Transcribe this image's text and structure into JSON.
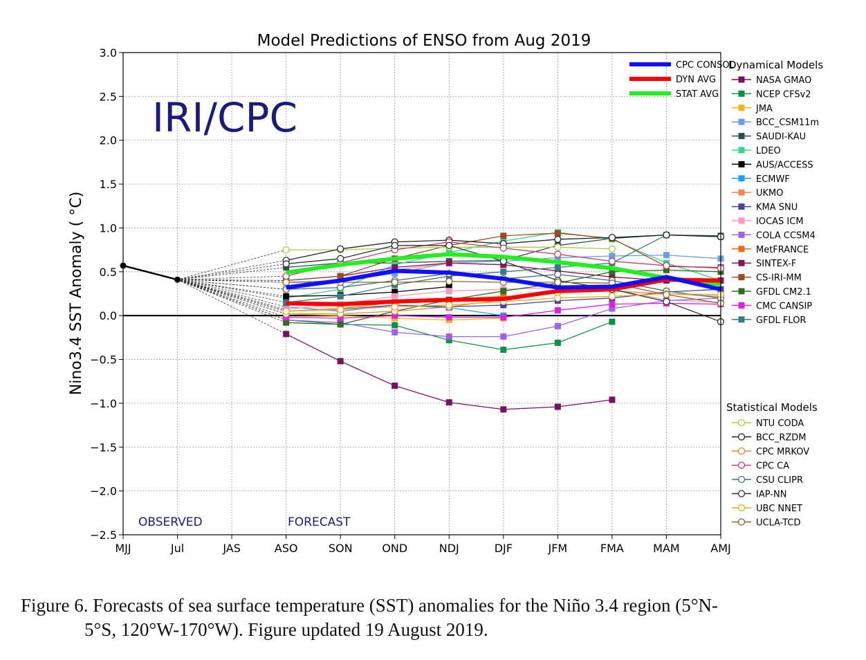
{
  "chart_data": {
    "type": "line",
    "title": "Model Predictions of ENSO from Aug 2019",
    "ylabel": "Nino3.4 SST Anomaly ( °C)",
    "xlabel": "",
    "watermark": "IRI/CPC",
    "observed_label": "OBSERVED",
    "forecast_label": "FORECAST",
    "categories": [
      "MJJ",
      "Jul",
      "JAS",
      "ASO",
      "SON",
      "OND",
      "NDJ",
      "DJF",
      "JFM",
      "FMA",
      "MAM",
      "AMJ"
    ],
    "ylim": [
      -2.5,
      3.0
    ],
    "yticks": [
      "3.0",
      "2.5",
      "2.0",
      "1.5",
      "1.0",
      "0.5",
      "0.0",
      "−0.5",
      "−1.0",
      "−1.5",
      "−2.0",
      "−2.5"
    ],
    "grid": true,
    "observed": {
      "x": [
        "MJJ",
        "Jul"
      ],
      "values": [
        0.57,
        0.41
      ],
      "color": "#000000"
    },
    "averages": [
      {
        "name": "CPC CONSOL",
        "color": "#1010ff",
        "values": [
          0.32,
          0.4,
          0.51,
          0.49,
          0.42,
          0.32,
          0.33,
          0.44,
          0.3
        ]
      },
      {
        "name": "DYN AVG",
        "color": "#ff0000",
        "values": [
          0.14,
          0.13,
          0.16,
          0.18,
          0.19,
          0.28,
          0.3,
          0.41,
          0.4
        ]
      },
      {
        "name": "STAT AVG",
        "color": "#22ee22",
        "values": [
          0.49,
          0.58,
          0.65,
          0.7,
          0.67,
          0.61,
          0.54,
          0.43,
          0.36
        ]
      }
    ],
    "dynamical_models_title": "Dynamical Models",
    "dynamical_models": [
      {
        "name": "NASA GMAO",
        "color": "#7a1060",
        "values": [
          -0.21,
          -0.52,
          -0.8,
          -0.99,
          -1.07,
          -1.04,
          -0.96
        ]
      },
      {
        "name": "NCEP CFSv2",
        "color": "#10904a",
        "values": [
          -0.05,
          -0.1,
          -0.11,
          -0.28,
          -0.39,
          -0.31,
          -0.07
        ]
      },
      {
        "name": "JMA",
        "color": "#f0b800",
        "values": [
          0.02,
          0.0,
          -0.03,
          -0.05,
          -0.03
        ]
      },
      {
        "name": "BCC_CSM11m",
        "color": "#6a9fe8",
        "values": [
          0.38,
          0.4,
          0.48,
          0.6,
          0.62,
          0.66,
          0.68,
          0.69,
          0.65
        ]
      },
      {
        "name": "SAUDI-KAU",
        "color": "#2f4f4f",
        "values": [
          0.55,
          0.6,
          0.6,
          0.62,
          0.63,
          0.8,
          0.88,
          0.92,
          0.91
        ]
      },
      {
        "name": "LDEO",
        "color": "#33d68a",
        "values": [
          0.2,
          0.3,
          0.58,
          0.72,
          0.85,
          0.95,
          0.87,
          0.6,
          0.4
        ]
      },
      {
        "name": "AUS/ACCESS",
        "color": "#000000",
        "values": [
          0.22,
          0.23,
          0.27,
          0.33
        ]
      },
      {
        "name": "ECMWF",
        "color": "#1f9fff",
        "values": [
          0.1,
          0.05,
          0.12,
          0.09,
          0.0
        ]
      },
      {
        "name": "UKMO",
        "color": "#f08a50",
        "values": [
          0.3,
          0.4,
          0.52,
          0.6,
          0.58
        ]
      },
      {
        "name": "KMA SNU",
        "color": "#4a3fa0",
        "values": [
          0.05,
          0.07,
          0.12,
          0.1,
          0.12,
          0.17,
          0.2,
          0.27,
          0.3
        ]
      },
      {
        "name": "IOCAS ICM",
        "color": "#f29cc2",
        "values": [
          0.07,
          0.13,
          0.22,
          0.28,
          0.3,
          0.32,
          0.3,
          0.18,
          0.15
        ]
      },
      {
        "name": "COLA CCSM4",
        "color": "#a060e8",
        "values": [
          -0.05,
          -0.08,
          -0.19,
          -0.24,
          -0.24,
          -0.12,
          0.08,
          0.17,
          0.2
        ]
      },
      {
        "name": "MetFRANCE",
        "color": "#f06a10",
        "values": [
          0.05,
          0.08,
          0.15,
          0.18,
          0.22
        ]
      },
      {
        "name": "SINTEX-F",
        "color": "#8a1060",
        "values": [
          0.4,
          0.45,
          0.55,
          0.6,
          0.58,
          0.51,
          0.44,
          0.4,
          0.4
        ]
      },
      {
        "name": "CS-IRI-MM",
        "color": "#a04a20",
        "values": [
          0.4,
          0.45,
          0.65,
          0.8,
          0.91,
          0.94,
          0.88,
          0.56,
          0.55
        ]
      },
      {
        "name": "GFDL CM2.1",
        "color": "#2f7020",
        "values": [
          -0.08,
          -0.1,
          0.05,
          0.18,
          0.28,
          0.37,
          0.5,
          0.52,
          0.5
        ]
      },
      {
        "name": "CMC CANSIP",
        "color": "#e020e0",
        "values": [
          -0.02,
          -0.03,
          0.0,
          -0.02,
          -0.02,
          0.06,
          0.13,
          0.14,
          0.13
        ]
      },
      {
        "name": "GFDL FLOR",
        "color": "#3a7a80",
        "values": [
          0.15,
          0.22,
          0.35,
          0.45,
          0.5,
          0.55,
          0.6,
          0.92,
          0.9
        ]
      }
    ],
    "statistical_models_title": "Statistical Models",
    "statistical_models": [
      {
        "name": "NTU CODA",
        "color": "#a0d040",
        "values": [
          0.75,
          0.75,
          0.77,
          0.78,
          0.78,
          0.78,
          0.76
        ]
      },
      {
        "name": "BCC_RZDM",
        "color": "#202020",
        "values": [
          0.63,
          0.76,
          0.84,
          0.86,
          0.82,
          0.87,
          0.89,
          0.92,
          0.9
        ]
      },
      {
        "name": "CPC MRKOV",
        "color": "#e08a30",
        "values": [
          0.02,
          0.02,
          0.05,
          0.1,
          0.18,
          0.26,
          0.28,
          0.25,
          0.22
        ]
      },
      {
        "name": "CPC CA",
        "color": "#c03a7a",
        "values": [
          0.45,
          0.6,
          0.75,
          0.84,
          0.77,
          0.7,
          0.62,
          0.57,
          0.54
        ]
      },
      {
        "name": "CSU CLIPR",
        "color": "#4a6a7a",
        "values": [
          0.3,
          0.32,
          0.4,
          0.48,
          0.42,
          0.47,
          0.4,
          0.28,
          0.2
        ]
      },
      {
        "name": "IAP-NN",
        "color": "#303030",
        "values": [
          0.59,
          0.65,
          0.8,
          0.8,
          0.62,
          0.4,
          0.3,
          0.16,
          -0.07
        ]
      },
      {
        "name": "UBC NNET",
        "color": "#e0b020",
        "values": [
          0.05,
          0.07,
          0.1,
          0.12,
          0.16,
          0.2,
          0.22,
          0.25,
          0.24
        ]
      },
      {
        "name": "UCLA-TCD",
        "color": "#8a6a20",
        "values": [
          0.38,
          0.38,
          0.38,
          0.39,
          0.38,
          0.38,
          0.37,
          0.24,
          0.14
        ]
      }
    ]
  },
  "caption": {
    "line1": "Figure 6. Forecasts of sea surface temperature (SST) anomalies for the Niño 3.4 region (5°N-",
    "line2": "5°S, 120°W-170°W). Figure updated 19 August 2019."
  }
}
